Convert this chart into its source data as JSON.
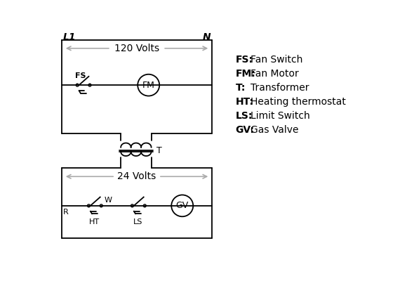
{
  "bg_color": "#ffffff",
  "line_color": "#000000",
  "arrow_color": "#aaaaaa",
  "label_color": "#000000",
  "legend": [
    [
      "FS:",
      "Fan Switch"
    ],
    [
      "FM:",
      "Fan Motor"
    ],
    [
      "T:",
      "Transformer"
    ],
    [
      "HT:",
      "Heating thermostat"
    ],
    [
      "LS:",
      "Limit Switch"
    ],
    [
      "GV:",
      "Gas Valve"
    ]
  ],
  "L1_label": "L1",
  "N_label": "N",
  "volts120": "120 Volts",
  "volts24": "24 Volts",
  "T_label": "T",
  "FS_label": "FS",
  "FM_label": "FM",
  "R_label": "R",
  "W_label": "W",
  "HT_label": "HT",
  "LS_label": "LS",
  "GV_label": "GV"
}
